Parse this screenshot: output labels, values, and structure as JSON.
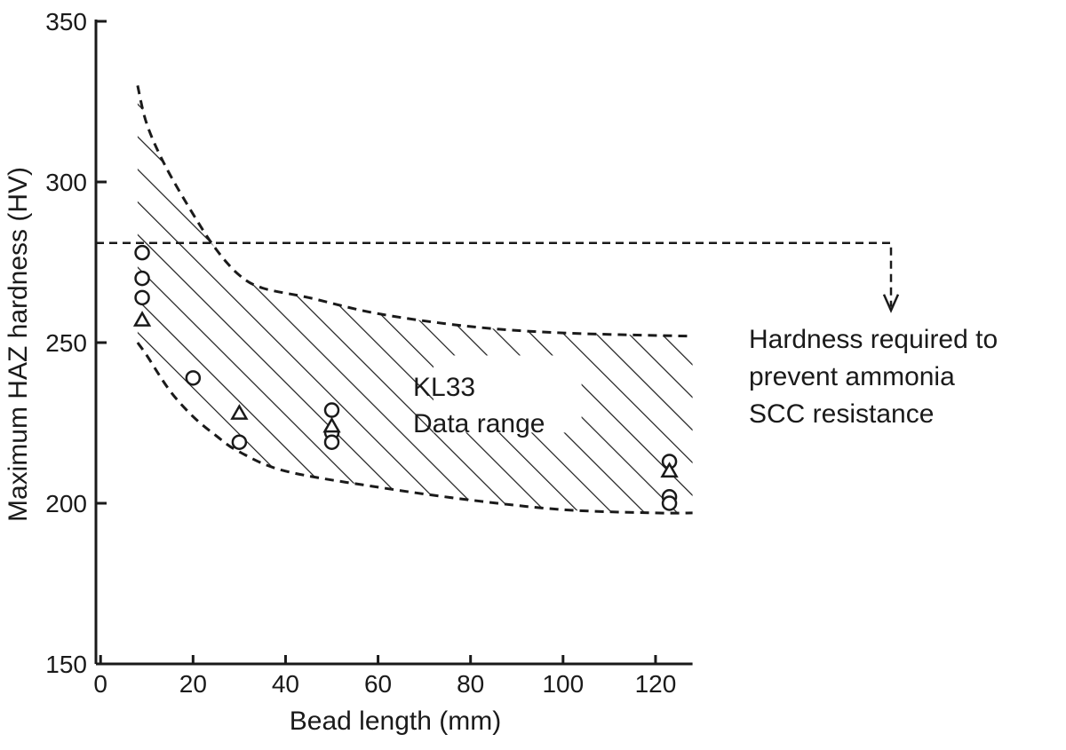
{
  "chart_data": {
    "type": "scatter",
    "title": "",
    "xlabel": "Bead length (mm)",
    "ylabel": "Maximum HAZ hardness (HV)",
    "xlim": [
      -1,
      130
    ],
    "ylim": [
      150,
      350
    ],
    "x_ticks": [
      0,
      20,
      40,
      60,
      80,
      100,
      120
    ],
    "y_ticks": [
      150,
      200,
      250,
      300,
      350
    ],
    "grid": false,
    "series": [
      {
        "marker": "circle",
        "points": [
          [
            9,
            278
          ],
          [
            9,
            270
          ],
          [
            9,
            264
          ],
          [
            20,
            239
          ],
          [
            30,
            219
          ],
          [
            50,
            229
          ],
          [
            50,
            222
          ],
          [
            50,
            219
          ],
          [
            123,
            213
          ],
          [
            123,
            202
          ],
          [
            123,
            200
          ]
        ]
      },
      {
        "marker": "triangle",
        "points": [
          [
            9,
            257
          ],
          [
            30,
            228
          ],
          [
            50,
            224
          ],
          [
            123,
            210
          ]
        ]
      }
    ],
    "data_range": {
      "label_line1": "KL33",
      "label_line2": "Data range",
      "upper_boundary": [
        [
          8,
          330
        ],
        [
          10,
          318
        ],
        [
          14,
          305
        ],
        [
          20,
          290
        ],
        [
          25,
          279
        ],
        [
          30,
          271
        ],
        [
          35,
          267
        ],
        [
          45,
          264
        ],
        [
          60,
          259
        ],
        [
          80,
          255
        ],
        [
          100,
          253
        ],
        [
          128,
          252
        ]
      ],
      "lower_boundary": [
        [
          8,
          250
        ],
        [
          10,
          246
        ],
        [
          15,
          235
        ],
        [
          20,
          227
        ],
        [
          25,
          221
        ],
        [
          30,
          216
        ],
        [
          40,
          210
        ],
        [
          60,
          205
        ],
        [
          80,
          201
        ],
        [
          100,
          198
        ],
        [
          120,
          197
        ],
        [
          128,
          197
        ]
      ],
      "fill": "hatched"
    },
    "threshold": {
      "value": 281,
      "style": "dashed",
      "label": "Hardness required to\nprevent ammonia\nSCC resistance",
      "label_lines": [
        "Hardness required to",
        "prevent ammonia",
        "SCC resistance"
      ]
    },
    "colors": {
      "ink": "#1a1a1a",
      "background": "#ffffff"
    }
  }
}
